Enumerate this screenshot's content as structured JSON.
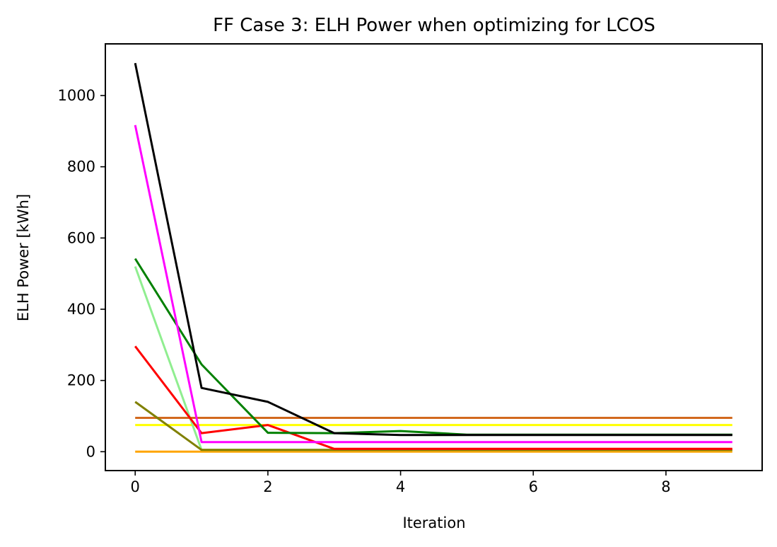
{
  "chart_data": {
    "type": "line",
    "title": "FF Case 3: ELH Power when optimizing for LCOS",
    "xlabel": "Iteration",
    "ylabel": "ELH Power [kWh]",
    "xlim": [
      -0.45,
      9.45
    ],
    "ylim": [
      -53,
      1145
    ],
    "xticks": [
      0,
      2,
      4,
      6,
      8
    ],
    "yticks": [
      0,
      200,
      400,
      600,
      800,
      1000
    ],
    "grid": false,
    "x": [
      0,
      1,
      2,
      3,
      4,
      5,
      6,
      7,
      8,
      9
    ],
    "series": [
      {
        "color": "#ffff00",
        "values": [
          75,
          75,
          75,
          75,
          75,
          75,
          75,
          75,
          75,
          75
        ]
      },
      {
        "color": "#ffa500",
        "values": [
          0,
          0,
          0,
          0,
          0,
          0,
          0,
          0,
          0,
          0
        ]
      },
      {
        "color": "#d2691e",
        "values": [
          95,
          95,
          95,
          95,
          95,
          95,
          95,
          95,
          95,
          95
        ]
      },
      {
        "color": "#90ee90",
        "values": [
          520,
          5,
          5,
          5,
          5,
          5,
          5,
          5,
          5,
          5
        ]
      },
      {
        "color": "#808000",
        "values": [
          140,
          5,
          5,
          5,
          5,
          5,
          5,
          5,
          5,
          5
        ]
      },
      {
        "color": "#ff0000",
        "values": [
          296,
          52,
          75,
          8,
          8,
          8,
          8,
          8,
          8,
          8
        ]
      },
      {
        "color": "#008000",
        "values": [
          542,
          245,
          53,
          52,
          58,
          48,
          48,
          48,
          48,
          48
        ]
      },
      {
        "color": "#ff00ff",
        "values": [
          917,
          27,
          27,
          27,
          27,
          27,
          27,
          27,
          27,
          27
        ]
      },
      {
        "color": "#000000",
        "values": [
          1091,
          179,
          140,
          52,
          47,
          47,
          47,
          47,
          47,
          47
        ]
      }
    ]
  }
}
